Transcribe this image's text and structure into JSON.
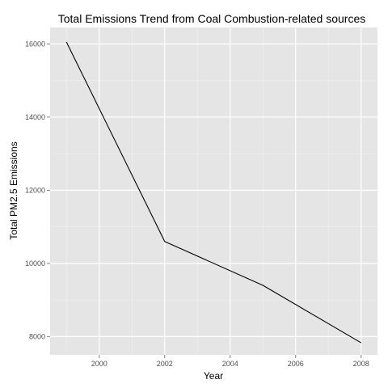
{
  "chart_data": {
    "type": "line",
    "title": "Total Emissions Trend from Coal Combustion-related sources",
    "xlabel": "Year",
    "ylabel": "Total PM2.5 Emissions",
    "x": [
      1999,
      2002,
      2005,
      2008
    ],
    "series": [
      {
        "values": [
          16050,
          10600,
          9400,
          7830
        ]
      }
    ],
    "xlim": [
      1998.5,
      2008.5
    ],
    "ylim": [
      7500,
      16450
    ],
    "x_ticks": [
      2000,
      2002,
      2004,
      2006,
      2008
    ],
    "x_tick_labels": [
      "2000",
      "2002",
      "2004",
      "2006",
      "2008"
    ],
    "y_ticks": [
      8000,
      10000,
      12000,
      14000,
      16000
    ],
    "y_tick_labels": [
      "8000",
      "10000",
      "12000",
      "14000",
      "16000"
    ],
    "grid": true,
    "legend": "none",
    "colors": {
      "panel_background": "#e5e5e5",
      "grid_major": "#ffffff",
      "grid_minor": "#f2f2f2",
      "line": "#000000"
    }
  }
}
